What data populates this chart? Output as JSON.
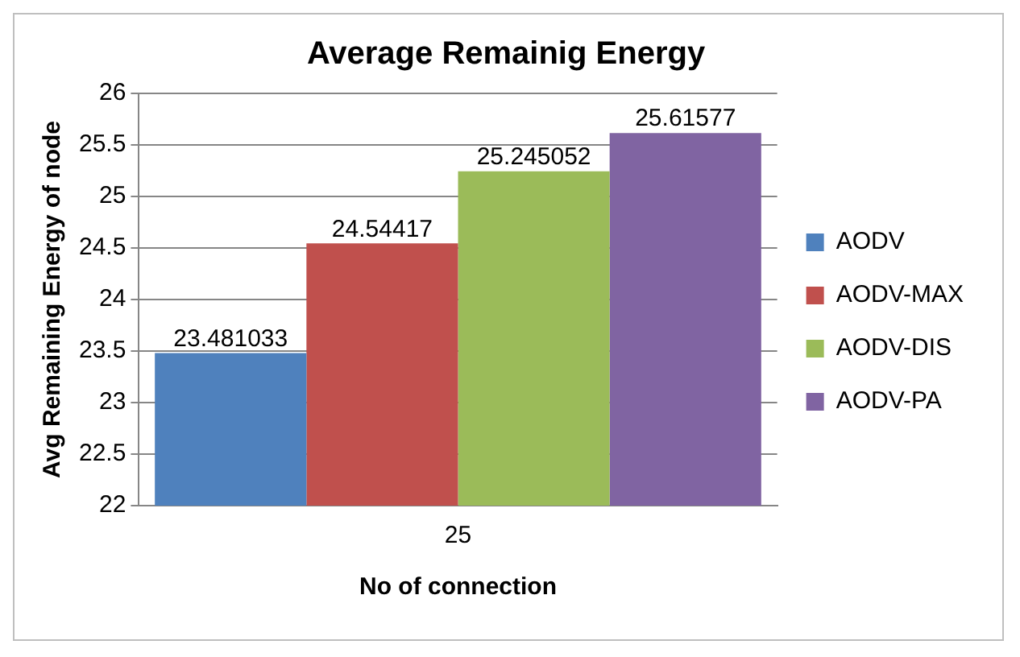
{
  "chart_data": {
    "type": "bar",
    "title": "Average Remainig Energy",
    "xlabel": "No of connection",
    "ylabel": "Avg Remaining Energy of node",
    "categories": [
      "25"
    ],
    "series": [
      {
        "name": "AODV",
        "color": "#4f81bd",
        "values": [
          23.481033
        ]
      },
      {
        "name": "AODV-MAX",
        "color": "#c0504d",
        "values": [
          24.54417
        ]
      },
      {
        "name": "AODV-DIS",
        "color": "#9bbb59",
        "values": [
          25.245052
        ]
      },
      {
        "name": "AODV-PA",
        "color": "#8064a2",
        "values": [
          25.61577
        ]
      }
    ],
    "ylim": [
      22,
      26
    ],
    "yticks": [
      22,
      22.5,
      23,
      23.5,
      24,
      24.5,
      25,
      25.5,
      26
    ],
    "grid": "y",
    "legend": "right",
    "data_labels": true
  }
}
